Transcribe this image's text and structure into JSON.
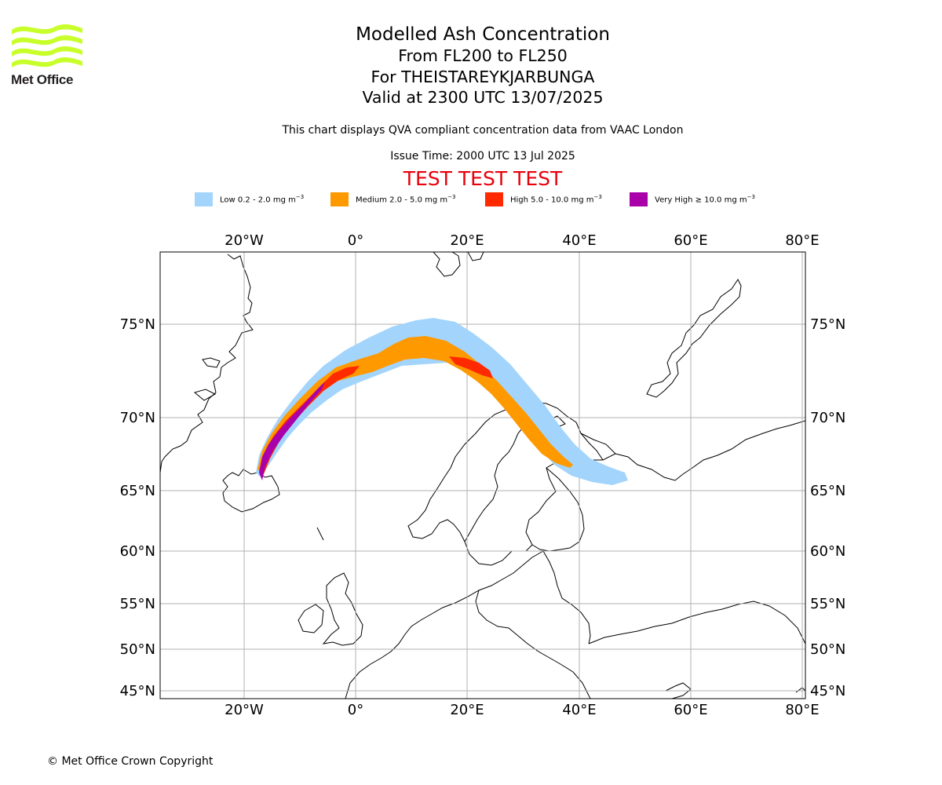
{
  "branding": {
    "logo_text": "Met Office"
  },
  "header": {
    "title": "Modelled Ash Concentration",
    "level_range": "From FL200 to FL250",
    "volcano": "For THEISTAREYKJARBUNGA",
    "valid_time": "Valid at 2300 UTC 13/07/2025",
    "compliance_note": "This chart displays QVA compliant concentration data from VAAC London",
    "issue_time": "Issue Time: 2000 UTC 13 Jul 2025",
    "test_banner": "TEST TEST TEST"
  },
  "legend": [
    {
      "label": "Low 0.2 - 2.0 mg m",
      "unit_exp": "−3",
      "color": "#a3d4fc"
    },
    {
      "label": "Medium 2.0 - 5.0 mg m",
      "unit_exp": "−3",
      "color": "#ff9900"
    },
    {
      "label": "High 5.0 - 10.0 mg m",
      "unit_exp": "−3",
      "color": "#ff2a00"
    },
    {
      "label": "Very High  ≥  10.0 mg m",
      "unit_exp": "−3",
      "color": "#aa00aa"
    }
  ],
  "map": {
    "longitude_labels": [
      "20°W",
      "0°",
      "20°E",
      "40°E",
      "60°E",
      "80°E"
    ],
    "latitude_labels": [
      "75°N",
      "70°N",
      "65°N",
      "60°N",
      "55°N",
      "50°N",
      "45°N"
    ],
    "colors": {
      "grid": "#b0b0b0",
      "coast": "#000000",
      "logo": "#c8ff2a"
    }
  },
  "footer": {
    "copyright": "© Met Office Crown Copyright"
  }
}
